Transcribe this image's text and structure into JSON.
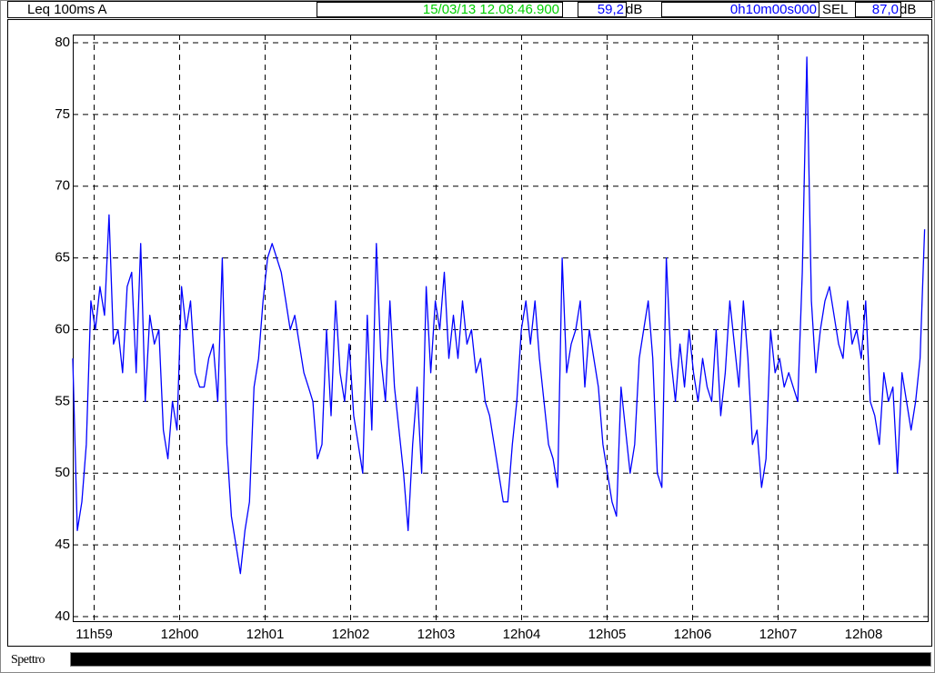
{
  "header": {
    "measure": "Leq 100ms  A",
    "timestamp": "15/03/13 12.08.46.900",
    "level": "59,2",
    "level_unit": "dB",
    "duration": "0h10m00s000",
    "sel_label": "SEL",
    "sel_value": "87,0",
    "sel_unit": "dB"
  },
  "footer": {
    "label": "Spettro"
  },
  "chart_data": {
    "type": "line",
    "color": "#0000ff",
    "grid": true,
    "xlim": [
      718.75,
      728.75
    ],
    "ylim": [
      40,
      80
    ],
    "yticks": [
      40,
      45,
      50,
      55,
      60,
      65,
      70,
      75,
      80
    ],
    "xticks": [
      {
        "value": 719,
        "label": "11h59"
      },
      {
        "value": 720,
        "label": "12h00"
      },
      {
        "value": 721,
        "label": "12h01"
      },
      {
        "value": 722,
        "label": "12h02"
      },
      {
        "value": 723,
        "label": "12h03"
      },
      {
        "value": 724,
        "label": "12h04"
      },
      {
        "value": 725,
        "label": "12h05"
      },
      {
        "value": 726,
        "label": "12h06"
      },
      {
        "value": 727,
        "label": "12h07"
      },
      {
        "value": 728,
        "label": "12h08"
      }
    ],
    "x": [
      718.75,
      718.803,
      718.856,
      718.909,
      718.962,
      719.015,
      719.068,
      719.121,
      719.174,
      719.227,
      719.28,
      719.333,
      719.386,
      719.439,
      719.492,
      719.545,
      719.598,
      719.651,
      719.704,
      719.757,
      719.81,
      719.863,
      719.916,
      719.969,
      720.022,
      720.075,
      720.128,
      720.181,
      720.234,
      720.287,
      720.34,
      720.393,
      720.446,
      720.499,
      720.552,
      720.605,
      720.658,
      720.711,
      720.764,
      720.817,
      720.87,
      720.923,
      720.976,
      721.029,
      721.082,
      721.135,
      721.188,
      721.241,
      721.294,
      721.347,
      721.4,
      721.453,
      721.506,
      721.559,
      721.612,
      721.665,
      721.718,
      721.771,
      721.824,
      721.877,
      721.93,
      721.983,
      722.036,
      722.089,
      722.142,
      722.195,
      722.248,
      722.301,
      722.354,
      722.407,
      722.46,
      722.513,
      722.566,
      722.619,
      722.672,
      722.725,
      722.778,
      722.831,
      722.884,
      722.937,
      722.99,
      723.043,
      723.096,
      723.149,
      723.202,
      723.255,
      723.308,
      723.361,
      723.414,
      723.467,
      723.52,
      723.573,
      723.626,
      723.679,
      723.732,
      723.785,
      723.838,
      723.891,
      723.944,
      723.997,
      724.05,
      724.103,
      724.156,
      724.209,
      724.262,
      724.315,
      724.368,
      724.421,
      724.474,
      724.527,
      724.58,
      724.633,
      724.686,
      724.739,
      724.792,
      724.845,
      724.898,
      724.951,
      725.004,
      725.057,
      725.11,
      725.163,
      725.216,
      725.269,
      725.322,
      725.375,
      725.428,
      725.481,
      725.534,
      725.587,
      725.64,
      725.693,
      725.746,
      725.799,
      725.852,
      725.905,
      725.958,
      726.011,
      726.064,
      726.117,
      726.17,
      726.223,
      726.276,
      726.329,
      726.382,
      726.435,
      726.488,
      726.541,
      726.594,
      726.647,
      726.7,
      726.753,
      726.806,
      726.859,
      726.912,
      726.965,
      727.018,
      727.071,
      727.124,
      727.177,
      727.23,
      727.283,
      727.336,
      727.389,
      727.442,
      727.495,
      727.548,
      727.601,
      727.654,
      727.707,
      727.76,
      727.813,
      727.866,
      727.919,
      727.972,
      728.025,
      728.078,
      728.131,
      728.184,
      728.237,
      728.29,
      728.343,
      728.396,
      728.449,
      728.502,
      728.555,
      728.608,
      728.661,
      728.714
    ],
    "values": [
      58,
      46,
      48,
      52,
      62,
      60,
      63,
      61,
      68,
      59,
      60,
      57,
      63,
      64,
      57,
      66,
      55,
      61,
      59,
      60,
      53,
      51,
      55,
      53,
      63,
      60,
      62,
      57,
      56,
      56,
      58,
      59,
      55,
      65,
      52,
      47,
      45,
      43,
      46,
      48,
      56,
      58,
      62,
      65,
      66,
      65,
      64,
      62,
      60,
      61,
      59,
      57,
      56,
      55,
      51,
      52,
      60,
      54,
      62,
      57,
      55,
      59,
      54,
      52,
      50,
      61,
      53,
      66,
      58,
      55,
      62,
      56,
      53,
      50,
      46,
      52,
      56,
      50,
      63,
      57,
      62,
      60,
      64,
      58,
      61,
      58,
      62,
      59,
      60,
      57,
      58,
      55,
      54,
      52,
      50,
      48,
      48,
      52,
      55,
      60,
      62,
      59,
      62,
      58,
      55,
      52,
      51,
      49,
      65,
      57,
      59,
      60,
      62,
      56,
      60,
      58,
      56,
      52,
      50,
      48,
      47,
      56,
      53,
      50,
      52,
      58,
      60,
      62,
      58,
      50,
      49,
      65,
      58,
      55,
      59,
      56,
      60,
      57,
      55,
      58,
      56,
      55,
      60,
      54,
      57,
      62,
      59,
      56,
      62,
      58,
      52,
      53,
      49,
      51,
      60,
      57,
      58,
      56,
      57,
      56,
      55,
      64,
      79,
      62,
      57,
      60,
      62,
      63,
      61,
      59,
      58,
      62,
      59,
      60,
      58,
      62,
      55,
      54,
      52,
      57,
      55,
      56,
      50,
      57,
      55,
      53,
      55,
      58,
      67
    ]
  }
}
